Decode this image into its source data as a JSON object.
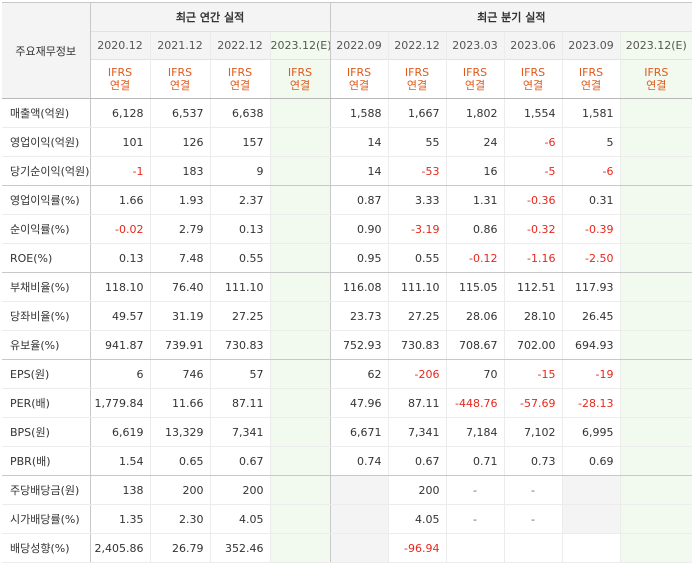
{
  "header": {
    "row_label": "주요재무정보",
    "annual_title": "최근 연간 실적",
    "quarterly_title": "최근 분기 실적",
    "annual_periods": [
      "2020.12",
      "2021.12",
      "2022.12",
      "2023.12(E)"
    ],
    "quarterly_periods": [
      "2022.09",
      "2022.12",
      "2023.03",
      "2023.06",
      "2023.09",
      "2023.12(E)"
    ],
    "ifrs_line1": "IFRS",
    "ifrs_line2": "연결"
  },
  "rows": [
    {
      "label": "매출액(억원)",
      "annual": [
        "6,128",
        "6,537",
        "6,638",
        ""
      ],
      "quarterly": [
        "1,588",
        "1,667",
        "1,802",
        "1,554",
        "1,581",
        ""
      ]
    },
    {
      "label": "영업이익(억원)",
      "annual": [
        "101",
        "126",
        "157",
        ""
      ],
      "quarterly": [
        "14",
        "55",
        "24",
        "-6",
        "5",
        ""
      ]
    },
    {
      "label": "당기순이익(억원)",
      "annual": [
        "-1",
        "183",
        "9",
        ""
      ],
      "quarterly": [
        "14",
        "-53",
        "16",
        "-5",
        "-6",
        ""
      ]
    },
    {
      "label": "영업이익률(%)",
      "annual": [
        "1.66",
        "1.93",
        "2.37",
        ""
      ],
      "quarterly": [
        "0.87",
        "3.33",
        "1.31",
        "-0.36",
        "0.31",
        ""
      ]
    },
    {
      "label": "순이익률(%)",
      "annual": [
        "-0.02",
        "2.79",
        "0.13",
        ""
      ],
      "quarterly": [
        "0.90",
        "-3.19",
        "0.86",
        "-0.32",
        "-0.39",
        ""
      ]
    },
    {
      "label": "ROE(%)",
      "annual": [
        "0.13",
        "7.48",
        "0.55",
        ""
      ],
      "quarterly": [
        "0.95",
        "0.55",
        "-0.12",
        "-1.16",
        "-2.50",
        ""
      ]
    },
    {
      "label": "부채비율(%)",
      "annual": [
        "118.10",
        "76.40",
        "111.10",
        ""
      ],
      "quarterly": [
        "116.08",
        "111.10",
        "115.05",
        "112.51",
        "117.93",
        ""
      ]
    },
    {
      "label": "당좌비율(%)",
      "annual": [
        "49.57",
        "31.19",
        "27.25",
        ""
      ],
      "quarterly": [
        "23.73",
        "27.25",
        "28.06",
        "28.10",
        "26.45",
        ""
      ]
    },
    {
      "label": "유보율(%)",
      "annual": [
        "941.87",
        "739.91",
        "730.83",
        ""
      ],
      "quarterly": [
        "752.93",
        "730.83",
        "708.67",
        "702.00",
        "694.93",
        ""
      ]
    },
    {
      "label": "EPS(원)",
      "annual": [
        "6",
        "746",
        "57",
        ""
      ],
      "quarterly": [
        "62",
        "-206",
        "70",
        "-15",
        "-19",
        ""
      ]
    },
    {
      "label": "PER(배)",
      "annual": [
        "1,779.84",
        "11.66",
        "87.11",
        ""
      ],
      "quarterly": [
        "47.96",
        "87.11",
        "-448.76",
        "-57.69",
        "-28.13",
        ""
      ]
    },
    {
      "label": "BPS(원)",
      "annual": [
        "6,619",
        "13,329",
        "7,341",
        ""
      ],
      "quarterly": [
        "6,671",
        "7,341",
        "7,184",
        "7,102",
        "6,995",
        ""
      ]
    },
    {
      "label": "PBR(배)",
      "annual": [
        "1.54",
        "0.65",
        "0.67",
        ""
      ],
      "quarterly": [
        "0.74",
        "0.67",
        "0.71",
        "0.73",
        "0.69",
        ""
      ]
    },
    {
      "label": "주당배당금(원)",
      "annual": [
        "138",
        "200",
        "200",
        ""
      ],
      "quarterly": [
        "",
        "200",
        "-",
        "-",
        "",
        ""
      ]
    },
    {
      "label": "시가배당률(%)",
      "annual": [
        "1.35",
        "2.30",
        "4.05",
        ""
      ],
      "quarterly": [
        "",
        "4.05",
        "-",
        "-",
        "",
        ""
      ]
    },
    {
      "label": "배당성향(%)",
      "annual": [
        "2,405.86",
        "26.79",
        "352.46",
        ""
      ],
      "quarterly": [
        "",
        "-96.94",
        "",
        "",
        "",
        ""
      ]
    }
  ],
  "colors": {
    "negative": "#e8271c",
    "ifrs_text": "#e05a1c",
    "estimate_bg": "#f2f9ef",
    "header_bg": "#f4f4f4"
  }
}
